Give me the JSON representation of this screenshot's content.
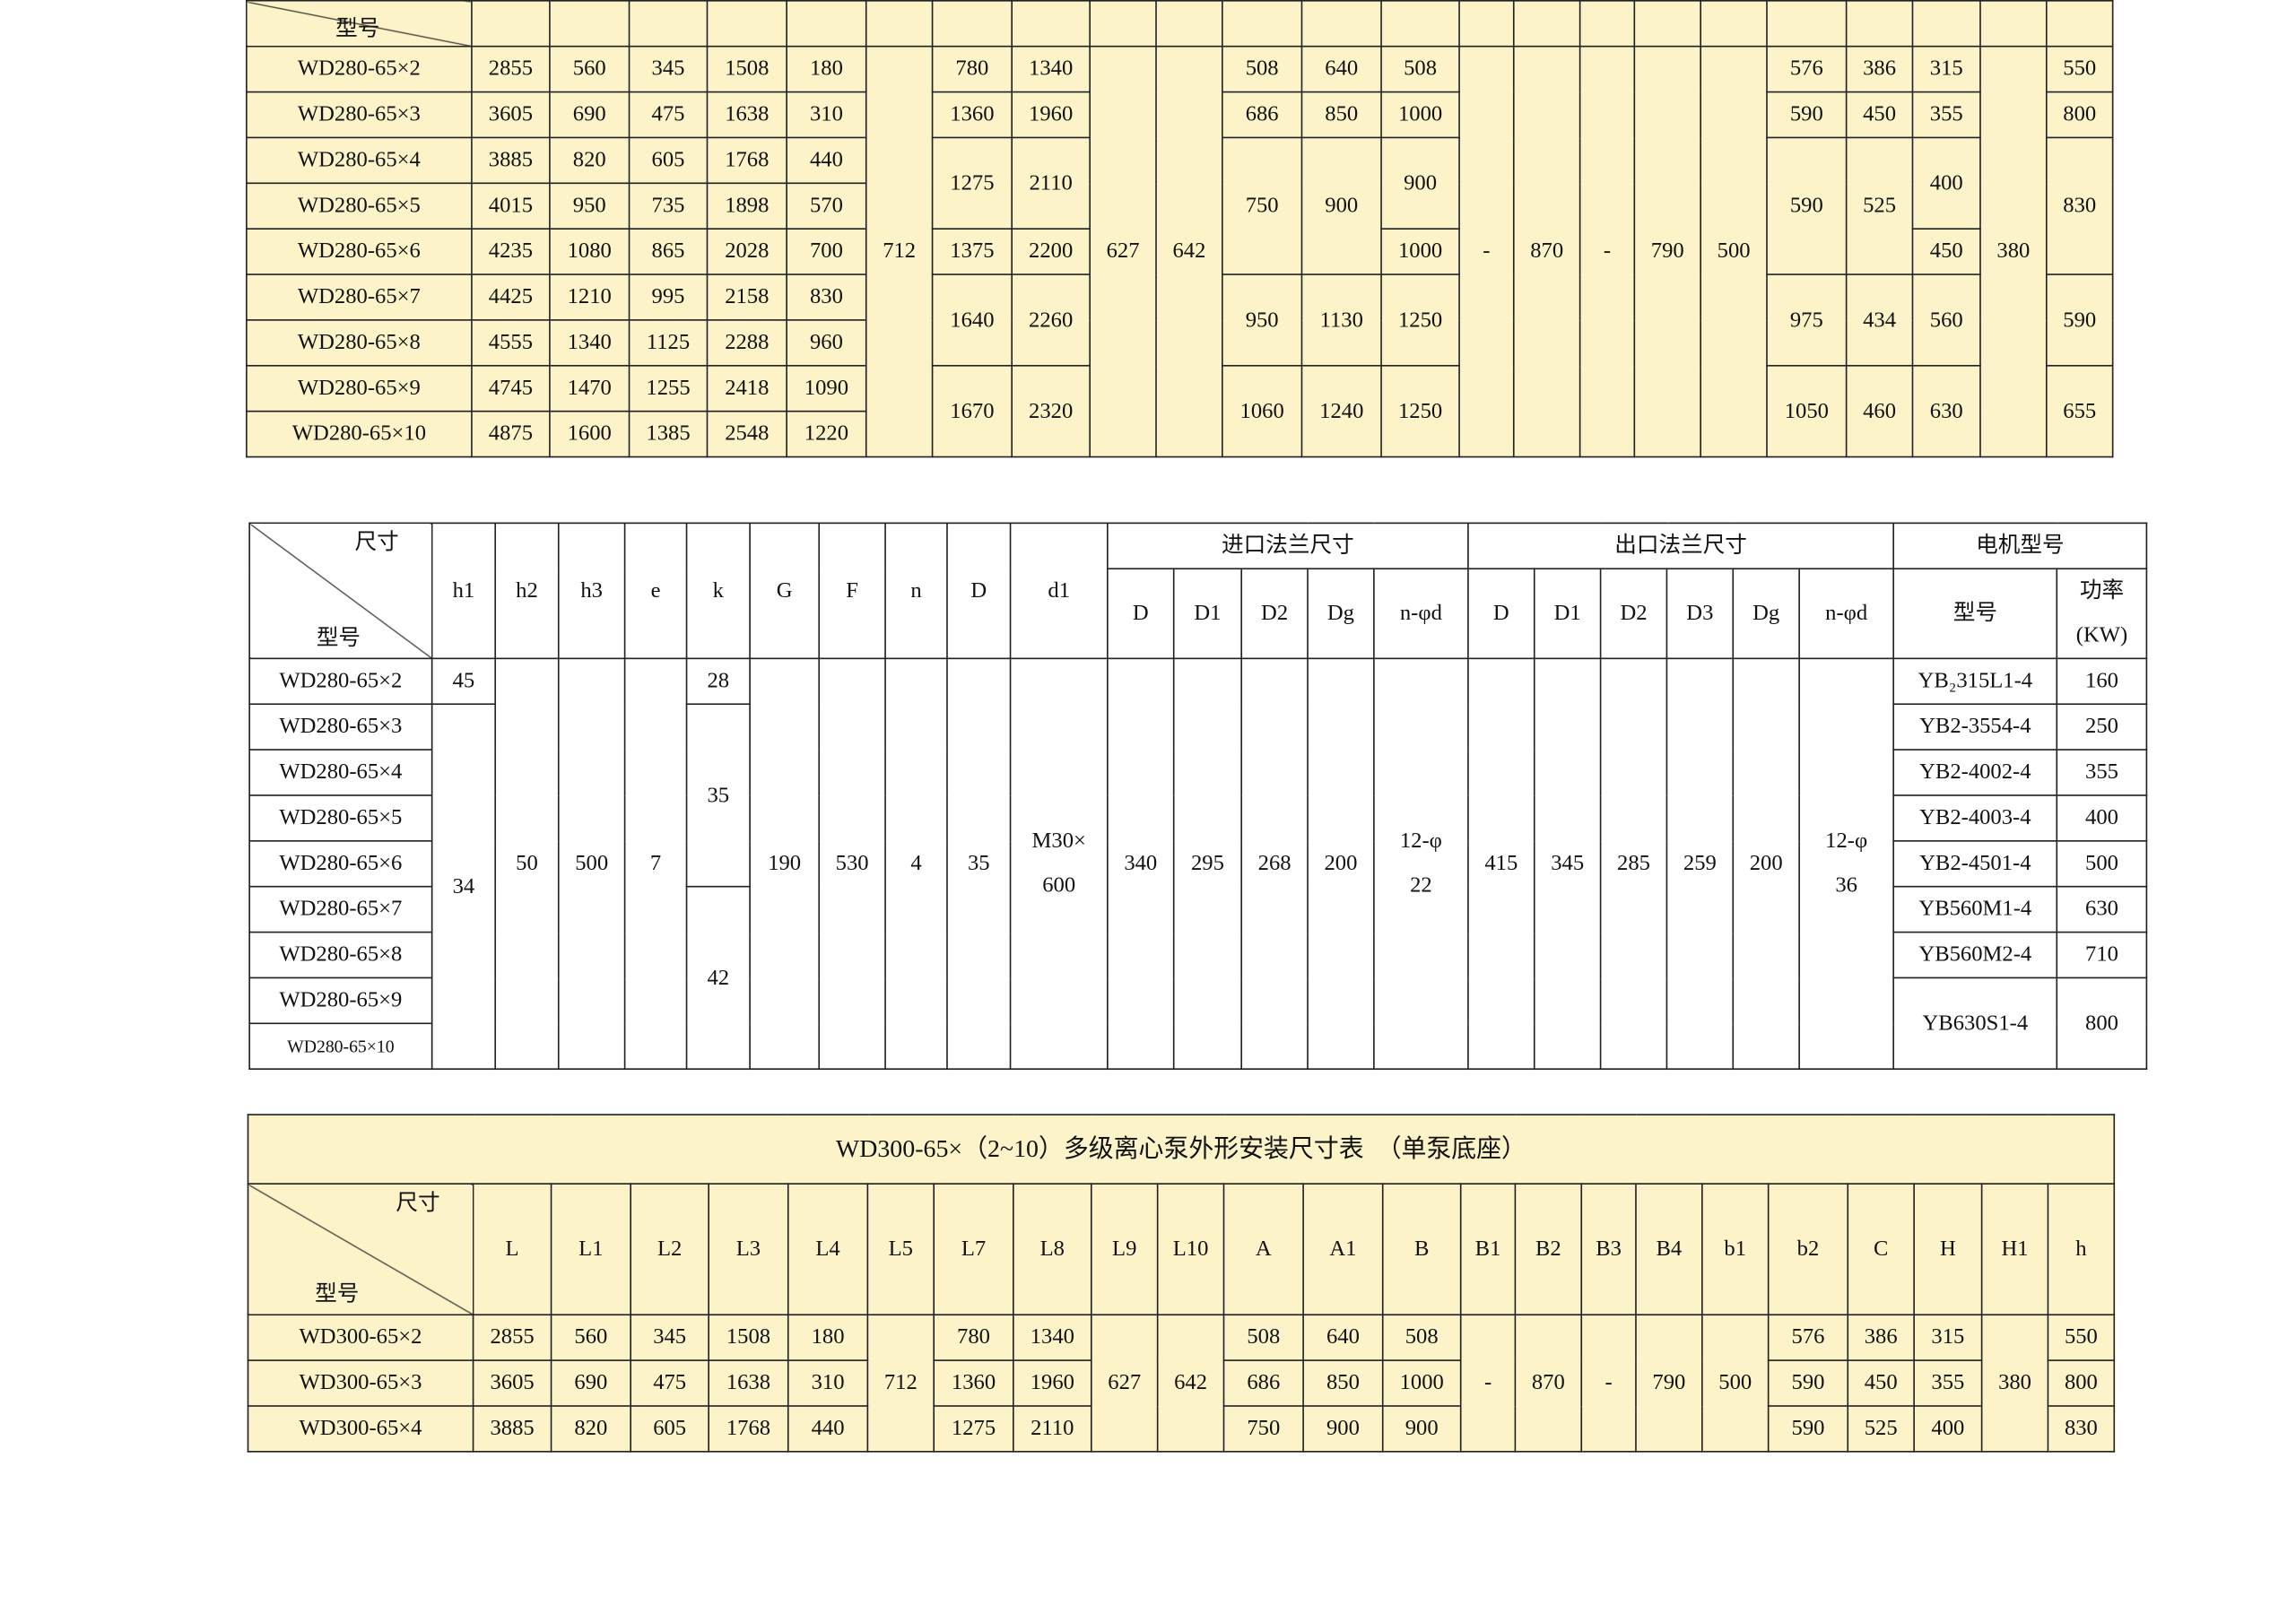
{
  "colors": {
    "table_fill": "#fdf3c9",
    "border": "#222222"
  },
  "tables": [
    {
      "header": {
        "corner_bottom": "型号"
      },
      "rows": [
        {
          "cells": [
            {
              "v": "WD280-65×2"
            },
            {
              "v": "2855"
            },
            {
              "v": "560"
            },
            {
              "v": "345"
            },
            {
              "v": "1508"
            },
            {
              "v": "180"
            },
            {
              "v": "712",
              "rs": 9
            },
            {
              "v": "780"
            },
            {
              "v": "1340"
            },
            {
              "v": "627",
              "rs": 9
            },
            {
              "v": "642",
              "rs": 9
            },
            {
              "v": "508"
            },
            {
              "v": "640"
            },
            {
              "v": "508"
            },
            {
              "v": "-",
              "rs": 9
            },
            {
              "v": "870",
              "rs": 9
            },
            {
              "v": "-",
              "rs": 9
            },
            {
              "v": "790",
              "rs": 9
            },
            {
              "v": "500",
              "rs": 9
            },
            {
              "v": "576"
            },
            {
              "v": "386"
            },
            {
              "v": "315"
            },
            {
              "v": "380",
              "rs": 9
            },
            {
              "v": "550"
            }
          ]
        },
        {
          "cells": [
            {
              "v": "WD280-65×3"
            },
            {
              "v": "3605"
            },
            {
              "v": "690"
            },
            {
              "v": "475"
            },
            {
              "v": "1638"
            },
            {
              "v": "310"
            },
            {
              "v": "1360"
            },
            {
              "v": "1960"
            },
            {
              "v": "686"
            },
            {
              "v": "850"
            },
            {
              "v": "1000"
            },
            {
              "v": "590"
            },
            {
              "v": "450"
            },
            {
              "v": "355"
            },
            {
              "v": "800"
            }
          ]
        },
        {
          "cells": [
            {
              "v": "WD280-65×4"
            },
            {
              "v": "3885"
            },
            {
              "v": "820"
            },
            {
              "v": "605"
            },
            {
              "v": "1768"
            },
            {
              "v": "440"
            },
            {
              "v": "1275",
              "rs": 2
            },
            {
              "v": "2110",
              "rs": 2
            },
            {
              "v": "750",
              "rs": 3
            },
            {
              "v": "900",
              "rs": 3
            },
            {
              "v": "900",
              "rs": 2
            },
            {
              "v": "590",
              "rs": 3
            },
            {
              "v": "525",
              "rs": 3
            },
            {
              "v": "400",
              "rs": 2
            },
            {
              "v": "830",
              "rs": 3
            }
          ]
        },
        {
          "cells": [
            {
              "v": "WD280-65×5"
            },
            {
              "v": "4015"
            },
            {
              "v": "950"
            },
            {
              "v": "735"
            },
            {
              "v": "1898"
            },
            {
              "v": "570"
            }
          ]
        },
        {
          "cells": [
            {
              "v": "WD280-65×6"
            },
            {
              "v": "4235"
            },
            {
              "v": "1080"
            },
            {
              "v": "865"
            },
            {
              "v": "2028"
            },
            {
              "v": "700"
            },
            {
              "v": "1375"
            },
            {
              "v": "2200"
            },
            {
              "v": "1000"
            },
            {
              "v": "450"
            }
          ]
        },
        {
          "cells": [
            {
              "v": "WD280-65×7"
            },
            {
              "v": "4425"
            },
            {
              "v": "1210"
            },
            {
              "v": "995"
            },
            {
              "v": "2158"
            },
            {
              "v": "830"
            },
            {
              "v": "1640",
              "rs": 2
            },
            {
              "v": "2260",
              "rs": 2
            },
            {
              "v": "950",
              "rs": 2
            },
            {
              "v": "1130",
              "rs": 2
            },
            {
              "v": "1250",
              "rs": 2
            },
            {
              "v": "975",
              "rs": 2
            },
            {
              "v": "434",
              "rs": 2
            },
            {
              "v": "560",
              "rs": 2
            },
            {
              "v": "590",
              "rs": 2
            }
          ]
        },
        {
          "cells": [
            {
              "v": "WD280-65×8"
            },
            {
              "v": "4555"
            },
            {
              "v": "1340"
            },
            {
              "v": "1125"
            },
            {
              "v": "2288"
            },
            {
              "v": "960"
            }
          ]
        },
        {
          "cells": [
            {
              "v": "WD280-65×9"
            },
            {
              "v": "4745"
            },
            {
              "v": "1470"
            },
            {
              "v": "1255"
            },
            {
              "v": "2418"
            },
            {
              "v": "1090"
            },
            {
              "v": "1670",
              "rs": 2
            },
            {
              "v": "2320",
              "rs": 2
            },
            {
              "v": "1060",
              "rs": 2
            },
            {
              "v": "1240",
              "rs": 2
            },
            {
              "v": "1250",
              "rs": 2
            },
            {
              "v": "1050",
              "rs": 2
            },
            {
              "v": "460",
              "rs": 2
            },
            {
              "v": "630",
              "rs": 2
            },
            {
              "v": "655",
              "rs": 2
            }
          ]
        },
        {
          "cells": [
            {
              "v": "WD280-65×10"
            },
            {
              "v": "4875"
            },
            {
              "v": "1600"
            },
            {
              "v": "1385"
            },
            {
              "v": "2548"
            },
            {
              "v": "1220"
            }
          ]
        }
      ]
    },
    {
      "header": {
        "corner_top": "尺寸",
        "corner_bottom": "型号",
        "row1": [
          {
            "v": "h1",
            "rs": 2
          },
          {
            "v": "h2",
            "rs": 2
          },
          {
            "v": "h3",
            "rs": 2
          },
          {
            "v": "e",
            "rs": 2
          },
          {
            "v": "k",
            "rs": 2
          },
          {
            "v": "G",
            "rs": 2
          },
          {
            "v": "F",
            "rs": 2
          },
          {
            "v": "n",
            "rs": 2
          },
          {
            "v": "D",
            "rs": 2
          },
          {
            "v": "d1",
            "rs": 2
          },
          {
            "v": "进口法兰尺寸",
            "cs": 5
          },
          {
            "v": "出口法兰尺寸",
            "cs": 6
          },
          {
            "v": "电机型号",
            "cs": 2
          }
        ],
        "row2": [
          {
            "v": "D"
          },
          {
            "v": "D1"
          },
          {
            "v": "D2"
          },
          {
            "v": "Dg"
          },
          {
            "v": "n-φd"
          },
          {
            "v": "D"
          },
          {
            "v": "D1"
          },
          {
            "v": "D2"
          },
          {
            "v": "D3"
          },
          {
            "v": "Dg"
          },
          {
            "v": "n-φd"
          },
          {
            "v": "型号"
          },
          {
            "v": "功率 (KW)"
          }
        ]
      },
      "rows": [
        {
          "cells": [
            {
              "v": "WD280-65×2"
            },
            {
              "v": "45"
            },
            {
              "v": "50",
              "rs": 9
            },
            {
              "v": "500",
              "rs": 9
            },
            {
              "v": "7",
              "rs": 9
            },
            {
              "v": "28"
            },
            {
              "v": "190",
              "rs": 9
            },
            {
              "v": "530",
              "rs": 9
            },
            {
              "v": "4",
              "rs": 9
            },
            {
              "v": "35",
              "rs": 9
            },
            {
              "v": "M30× 600",
              "rs": 9
            },
            {
              "v": "340",
              "rs": 9
            },
            {
              "v": "295",
              "rs": 9
            },
            {
              "v": "268",
              "rs": 9
            },
            {
              "v": "200",
              "rs": 9
            },
            {
              "v": "12-φ 22",
              "rs": 9
            },
            {
              "v": "415",
              "rs": 9
            },
            {
              "v": "345",
              "rs": 9
            },
            {
              "v": "285",
              "rs": 9
            },
            {
              "v": "259",
              "rs": 9
            },
            {
              "v": "200",
              "rs": 9
            },
            {
              "v": "12-φ 36",
              "rs": 9
            },
            {
              "v": "YB₂315L1-4"
            },
            {
              "v": "160"
            }
          ]
        },
        {
          "cells": [
            {
              "v": "WD280-65×3"
            },
            {
              "v": "34",
              "rs": 8
            },
            {
              "v": "35",
              "rs": 4
            },
            {
              "v": "YB2-3554-4"
            },
            {
              "v": "250"
            }
          ]
        },
        {
          "cells": [
            {
              "v": "WD280-65×4"
            },
            {
              "v": "YB2-4002-4"
            },
            {
              "v": "355"
            }
          ]
        },
        {
          "cells": [
            {
              "v": "WD280-65×5"
            },
            {
              "v": "YB2-4003-4"
            },
            {
              "v": "400"
            }
          ]
        },
        {
          "cells": [
            {
              "v": "WD280-65×6"
            },
            {
              "v": "YB2-4501-4"
            },
            {
              "v": "500"
            }
          ]
        },
        {
          "cells": [
            {
              "v": "WD280-65×7"
            },
            {
              "v": "42",
              "rs": 4
            },
            {
              "v": "YB560M1-4"
            },
            {
              "v": "630"
            }
          ]
        },
        {
          "cells": [
            {
              "v": "WD280-65×8"
            },
            {
              "v": "YB560M2-4"
            },
            {
              "v": "710"
            }
          ]
        },
        {
          "cells": [
            {
              "v": "WD280-65×9"
            },
            {
              "v": "YB630S1-4",
              "rs": 2
            },
            {
              "v": "800",
              "rs": 2
            }
          ]
        },
        {
          "cells": [
            {
              "v": "WD280-65×10",
              "small": true
            }
          ]
        }
      ]
    },
    {
      "title": "WD300-65×（2~10）多级离心泵外形安装尺寸表　（单泵底座）",
      "header": {
        "corner_top": "尺寸",
        "corner_bottom": "型号",
        "row1": [
          {
            "v": "L"
          },
          {
            "v": "L1"
          },
          {
            "v": "L2"
          },
          {
            "v": "L3"
          },
          {
            "v": "L4"
          },
          {
            "v": "L5"
          },
          {
            "v": "L7"
          },
          {
            "v": "L8"
          },
          {
            "v": "L9"
          },
          {
            "v": "L10"
          },
          {
            "v": "A"
          },
          {
            "v": "A1"
          },
          {
            "v": "B"
          },
          {
            "v": "B1"
          },
          {
            "v": "B2"
          },
          {
            "v": "B3"
          },
          {
            "v": "B4"
          },
          {
            "v": "b1"
          },
          {
            "v": "b2"
          },
          {
            "v": "C"
          },
          {
            "v": "H"
          },
          {
            "v": "H1"
          },
          {
            "v": "h"
          }
        ]
      },
      "rows": [
        {
          "cells": [
            {
              "v": "WD300-65×2"
            },
            {
              "v": "2855"
            },
            {
              "v": "560"
            },
            {
              "v": "345"
            },
            {
              "v": "1508"
            },
            {
              "v": "180"
            },
            {
              "v": "712",
              "rs": 3
            },
            {
              "v": "780"
            },
            {
              "v": "1340"
            },
            {
              "v": "627",
              "rs": 3
            },
            {
              "v": "642",
              "rs": 3
            },
            {
              "v": "508"
            },
            {
              "v": "640"
            },
            {
              "v": "508"
            },
            {
              "v": "-",
              "rs": 3
            },
            {
              "v": "870",
              "rs": 3
            },
            {
              "v": "-",
              "rs": 3
            },
            {
              "v": "790",
              "rs": 3
            },
            {
              "v": "500",
              "rs": 3
            },
            {
              "v": "576"
            },
            {
              "v": "386"
            },
            {
              "v": "315"
            },
            {
              "v": "380",
              "rs": 3
            },
            {
              "v": "550"
            }
          ]
        },
        {
          "cells": [
            {
              "v": "WD300-65×3"
            },
            {
              "v": "3605"
            },
            {
              "v": "690"
            },
            {
              "v": "475"
            },
            {
              "v": "1638"
            },
            {
              "v": "310"
            },
            {
              "v": "1360"
            },
            {
              "v": "1960"
            },
            {
              "v": "686"
            },
            {
              "v": "850"
            },
            {
              "v": "1000"
            },
            {
              "v": "590"
            },
            {
              "v": "450"
            },
            {
              "v": "355"
            },
            {
              "v": "800"
            }
          ]
        },
        {
          "cells": [
            {
              "v": "WD300-65×4"
            },
            {
              "v": "3885"
            },
            {
              "v": "820"
            },
            {
              "v": "605"
            },
            {
              "v": "1768"
            },
            {
              "v": "440"
            },
            {
              "v": "1275"
            },
            {
              "v": "2110"
            },
            {
              "v": "750"
            },
            {
              "v": "900"
            },
            {
              "v": "900"
            },
            {
              "v": "590"
            },
            {
              "v": "525"
            },
            {
              "v": "400"
            },
            {
              "v": "830"
            }
          ]
        }
      ]
    }
  ]
}
